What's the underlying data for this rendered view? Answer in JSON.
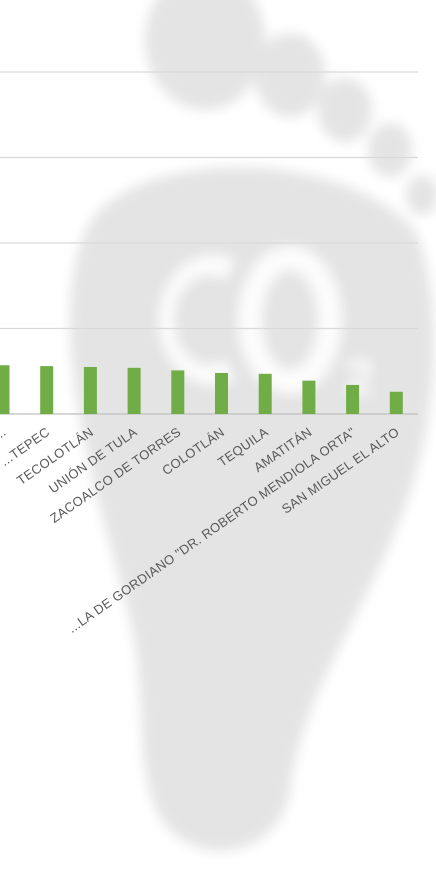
{
  "colors": {
    "bar": "#70ad47",
    "grid": "#d9d9d9",
    "axis": "#bfbfbf",
    "label": "#595959",
    "watermark": "#e6e6e6"
  },
  "watermark": {
    "icon": "co2-footprint-icon",
    "text": "CO2"
  },
  "chart_data": {
    "type": "bar",
    "grid": true,
    "legend": "none",
    "title": "",
    "xlabel": "",
    "ylabel": "",
    "categories": [
      "...",
      "...TEPEC",
      "TECOLOTLÁN",
      "UNIÓN DE TULA",
      "ZACOALCO DE TORRES",
      "COLOTLÁN",
      "TEQUILA",
      "AMATITÁN",
      "...LA DE GORDIANO \"DR. ROBERTO MENDIOLA ORTA\"",
      "SAN MIGUEL EL ALTO"
    ],
    "values": [
      0.57,
      0.56,
      0.55,
      0.54,
      0.51,
      0.48,
      0.47,
      0.39,
      0.34,
      0.26
    ],
    "ylim": [
      0,
      5
    ]
  }
}
